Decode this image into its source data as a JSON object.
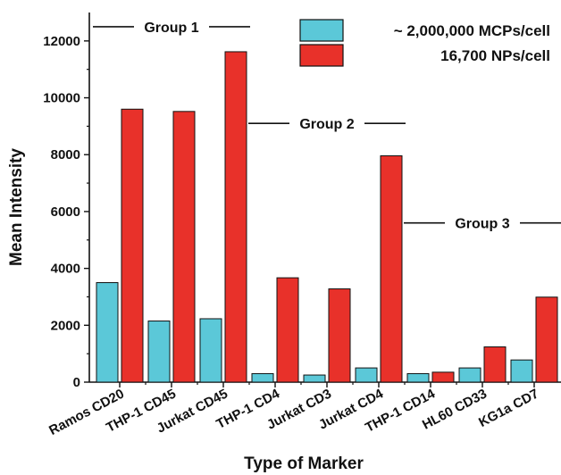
{
  "chart_data": {
    "type": "bar",
    "xlabel": "Type of Marker",
    "ylabel": "Mean Intensity",
    "ylim": [
      0,
      13000
    ],
    "yticks": [
      0,
      2000,
      4000,
      6000,
      8000,
      10000,
      12000
    ],
    "ytick_labels": [
      "0",
      "2000",
      "4000",
      "6000",
      "8000",
      "10000",
      "12000"
    ],
    "categories": [
      "Ramos CD20",
      "THP-1 CD45",
      "Jurkat CD45",
      "THP-1 CD4",
      "Jurkat CD3",
      "Jurkat CD4",
      "THP-1 CD14",
      "HL60 CD33",
      "KG1a CD7"
    ],
    "series": [
      {
        "name": "~ 2,000,000  MCPs/cell",
        "color": "#5bc8d8",
        "values": [
          3500,
          2150,
          2230,
          300,
          250,
          500,
          300,
          500,
          780
        ]
      },
      {
        "name": "16,700     NPs/cell",
        "color": "#e8312a",
        "values": [
          9600,
          9520,
          11620,
          3670,
          3280,
          7960,
          350,
          1240,
          2990
        ]
      }
    ],
    "legend": [
      {
        "text": "~ 2,000,000  MCPs/cell",
        "color": "#5bc8d8"
      },
      {
        "text": "16,700     NPs/cell",
        "color": "#e8312a"
      }
    ],
    "legend_position": "top-right",
    "annotations": [
      {
        "text": "Group 1",
        "start_category": 0,
        "end_category": 2,
        "y": 12500
      },
      {
        "text": "Group 2",
        "start_category": 3,
        "end_category": 5,
        "y": 9100
      },
      {
        "text": "Group 3",
        "start_category": 6,
        "end_category": 8,
        "y": 5600
      }
    ],
    "grid": false
  }
}
